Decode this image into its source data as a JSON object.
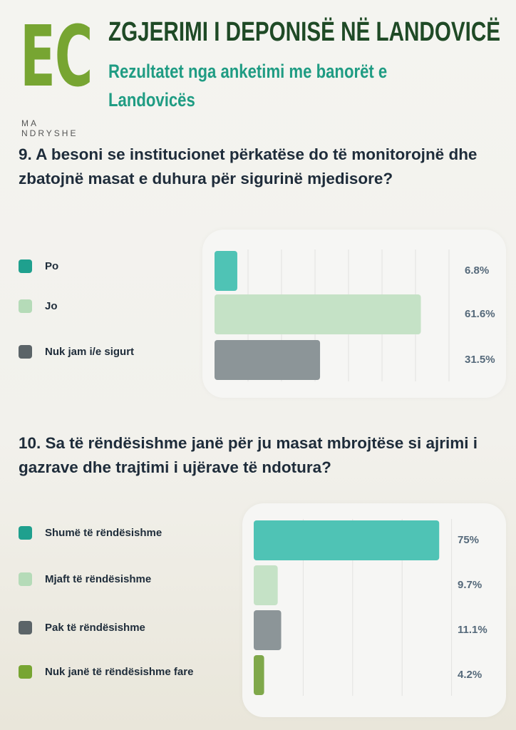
{
  "logo": {
    "letters": "EC",
    "tagline": "MA NDRYSHE"
  },
  "header": {
    "title": "ZGJERIMI I DEPONISË NË LANDOVICË",
    "subtitle": "Rezultatet nga anketimi me banorët e Landovicës"
  },
  "chart_data": [
    {
      "type": "bar",
      "orientation": "horizontal",
      "title": "9. A besoni se institucionet përkatëse do të monitorojnë dhe zbatojnë masat e duhura për sigurinë mjedisore?",
      "categories": [
        "Po",
        "Jo",
        "Nuk jam i/e sigurt"
      ],
      "values": [
        6.8,
        61.6,
        31.5
      ],
      "labels": [
        "6.8%",
        "61.6%",
        "31.5%"
      ],
      "colors": [
        "#4fc3b5",
        "#c5e2c6",
        "#8c9598"
      ],
      "legend_colors": [
        "#1fa08e",
        "#b5dbb8",
        "#5b6468"
      ],
      "xlim": [
        0,
        70
      ],
      "grid": true,
      "legend": "left"
    },
    {
      "type": "bar",
      "orientation": "horizontal",
      "title": "10. Sa të rëndësishme janë për ju masat mbrojtëse si ajrimi i gazrave dhe trajtimi i ujërave të ndotura?",
      "categories": [
        "Shumë të rëndësishme",
        "Mjaft të rëndësishme",
        "Pak të rëndësishme",
        "Nuk janë të rëndësishme fare"
      ],
      "values": [
        75,
        9.7,
        11.1,
        4.2
      ],
      "labels": [
        "75%",
        "9.7%",
        "11.1%",
        "4.2%"
      ],
      "colors": [
        "#4fc3b5",
        "#c5e2c6",
        "#8c9598",
        "#7fa84a"
      ],
      "legend_colors": [
        "#1fa08e",
        "#b5dbb8",
        "#5b6468",
        "#77a532"
      ],
      "xlim": [
        0,
        80
      ],
      "grid": true,
      "legend": "left"
    }
  ]
}
